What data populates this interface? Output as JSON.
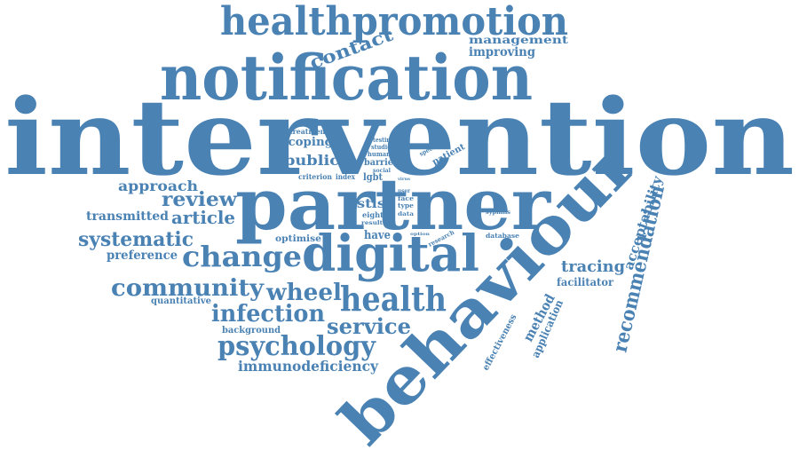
{
  "color": "#4a82b4",
  "words": [
    "intervention",
    "notification",
    "healthpromotion",
    "partner",
    "behaviour",
    "digital",
    "health",
    "change",
    "community",
    "psychology",
    "infection",
    "wheel",
    "service",
    "systematic",
    "recommendation",
    "contact",
    "review",
    "article",
    "approach",
    "transmitted",
    "preference",
    "tracing",
    "immunodeficiency",
    "acceptability",
    "management",
    "improving",
    "public",
    "scoping",
    "treatment",
    "testing",
    "studies",
    "human",
    "barrier",
    "social",
    "specific",
    "patient",
    "criterion",
    "index",
    "lgbt",
    "virus",
    "user",
    "stis",
    "face",
    "eight",
    "type",
    "data",
    "syphilis",
    "result",
    "option",
    "research",
    "database",
    "have",
    "optimise",
    "quantitative",
    "background",
    "facilitator",
    "method",
    "application",
    "effectiveness"
  ]
}
